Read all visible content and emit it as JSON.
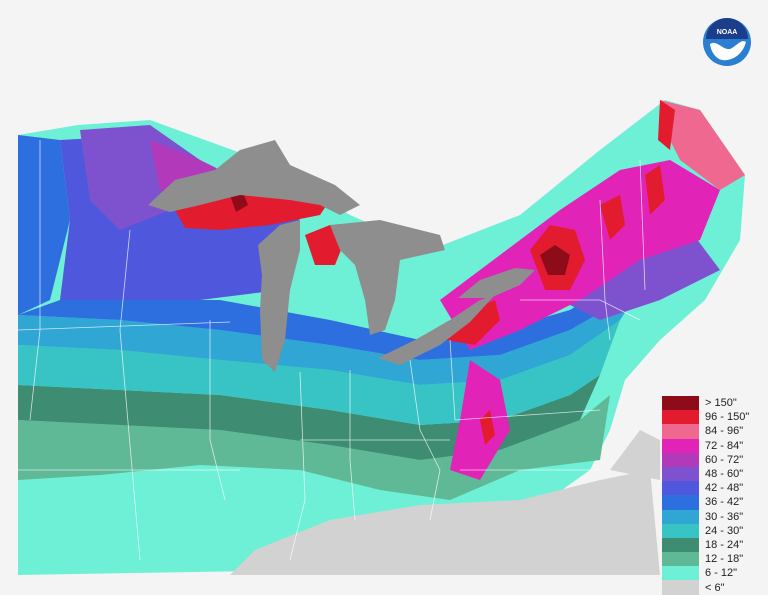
{
  "logo": {
    "text": "NOAA",
    "colors": {
      "outer": "#2a7fd0",
      "inner": "#1b3d8a",
      "wave": "#ffffff"
    }
  },
  "lake_color": "#8e8e8e",
  "outside_color": "#d2d2d2",
  "boundary_color": "#ffffff",
  "legend": {
    "items": [
      {
        "label": "> 150\"",
        "color": "#8e0c1a"
      },
      {
        "label": "96 - 150\"",
        "color": "#e31b2f"
      },
      {
        "label": "84 - 96\"",
        "color": "#ee6890"
      },
      {
        "label": "72 - 84\"",
        "color": "#e223b8"
      },
      {
        "label": "60 - 72\"",
        "color": "#b23aba"
      },
      {
        "label": "48 - 60\"",
        "color": "#7e52cf"
      },
      {
        "label": "42 - 48\"",
        "color": "#4f58dc"
      },
      {
        "label": "36 - 42\"",
        "color": "#2e6fe0"
      },
      {
        "label": "30 - 36\"",
        "color": "#2fa6d4"
      },
      {
        "label": "24 - 30\"",
        "color": "#38c4c4"
      },
      {
        "label": "18 - 24\"",
        "color": "#3e8c72"
      },
      {
        "label": "12 - 18\"",
        "color": "#5fb896"
      },
      {
        "label": "6 - 12\"",
        "color": "#6ef0d6"
      },
      {
        "label": "< 6\"",
        "color": "#d2d2d2"
      }
    ]
  }
}
